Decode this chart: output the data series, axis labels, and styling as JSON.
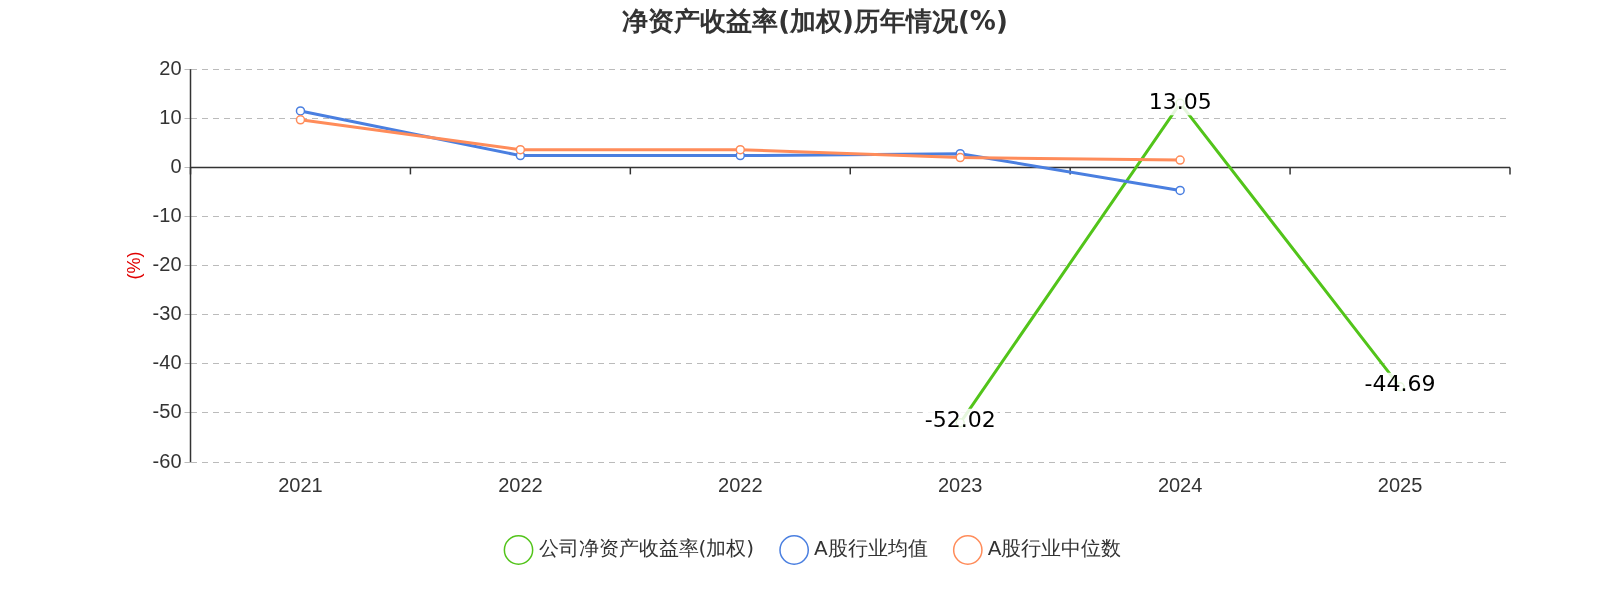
{
  "chart_data": {
    "type": "line",
    "title": "净资产收益率(加权)历年情况(%)",
    "ylabel": "(%)",
    "categories": [
      "2021",
      "2022",
      "2022",
      "2023",
      "2024",
      "2025"
    ],
    "series": [
      {
        "name": "公司净资产收益率(加权)",
        "color": "#52c41a",
        "values": [
          null,
          null,
          null,
          -52.02,
          13.05,
          -44.69
        ],
        "value_labels": [
          null,
          null,
          null,
          "-52.02",
          "13.05",
          "-44.69"
        ]
      },
      {
        "name": "A股行业均值",
        "color": "#4a7fe0",
        "values": [
          11.5,
          2.4,
          2.4,
          2.8,
          -4.7,
          null
        ]
      },
      {
        "name": "A股行业中位数",
        "color": "#ff8c5a",
        "values": [
          9.7,
          3.6,
          3.6,
          2.0,
          1.5,
          null
        ]
      }
    ],
    "ylim": [
      -60,
      20
    ],
    "yticks": [
      -60,
      -50,
      -40,
      -30,
      -20,
      -10,
      0,
      10,
      20
    ],
    "grid": "y",
    "legend": "bottom",
    "marker": "circle",
    "line_style": "solid"
  }
}
